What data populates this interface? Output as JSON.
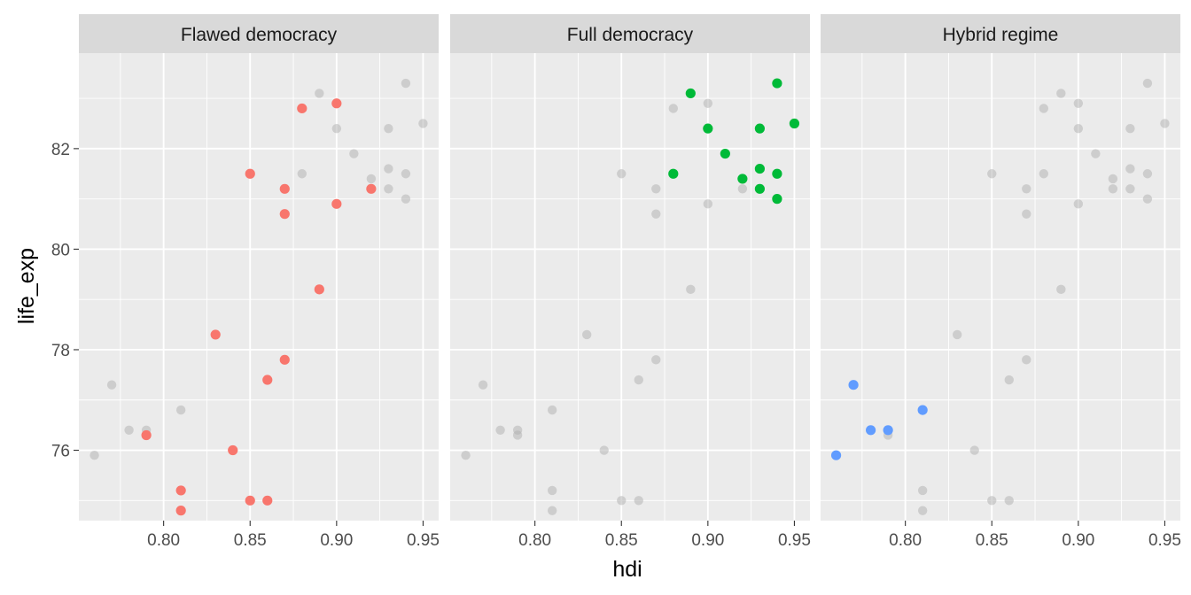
{
  "chart_data": {
    "type": "scatter",
    "xlabel": "hdi",
    "ylabel": "life_exp",
    "xlim": [
      0.751,
      0.959
    ],
    "ylim": [
      74.6,
      83.9
    ],
    "x_ticks": [
      0.8,
      0.85,
      0.9,
      0.95
    ],
    "x_tick_labels": [
      "0.80",
      "0.85",
      "0.90",
      "0.95"
    ],
    "y_ticks": [
      76,
      78,
      80,
      82
    ],
    "y_tick_labels": [
      "76",
      "78",
      "80",
      "82"
    ],
    "grid": true,
    "facets": [
      "Flawed democracy",
      "Full democracy",
      "Hybrid regime"
    ],
    "colors": {
      "Flawed democracy": "#F8766D",
      "Full democracy": "#00BA38",
      "Hybrid regime": "#619CFF",
      "background_points": "#b0b0b0",
      "panel_background": "#EBEBEB",
      "strip_background": "#D9D9D9"
    },
    "points": [
      {
        "x": 0.79,
        "y": 76.3,
        "group": "Flawed democracy"
      },
      {
        "x": 0.81,
        "y": 75.2,
        "group": "Flawed democracy"
      },
      {
        "x": 0.81,
        "y": 74.8,
        "group": "Flawed democracy"
      },
      {
        "x": 0.83,
        "y": 78.3,
        "group": "Flawed democracy"
      },
      {
        "x": 0.84,
        "y": 76.0,
        "group": "Flawed democracy"
      },
      {
        "x": 0.85,
        "y": 75.0,
        "group": "Flawed democracy"
      },
      {
        "x": 0.85,
        "y": 81.5,
        "group": "Flawed democracy"
      },
      {
        "x": 0.86,
        "y": 75.0,
        "group": "Flawed democracy"
      },
      {
        "x": 0.86,
        "y": 77.4,
        "group": "Flawed democracy"
      },
      {
        "x": 0.87,
        "y": 77.8,
        "group": "Flawed democracy"
      },
      {
        "x": 0.87,
        "y": 80.7,
        "group": "Flawed democracy"
      },
      {
        "x": 0.87,
        "y": 81.2,
        "group": "Flawed democracy"
      },
      {
        "x": 0.88,
        "y": 82.8,
        "group": "Flawed democracy"
      },
      {
        "x": 0.89,
        "y": 79.2,
        "group": "Flawed democracy"
      },
      {
        "x": 0.9,
        "y": 82.9,
        "group": "Flawed democracy"
      },
      {
        "x": 0.9,
        "y": 80.9,
        "group": "Flawed democracy"
      },
      {
        "x": 0.92,
        "y": 81.2,
        "group": "Flawed democracy"
      },
      {
        "x": 0.88,
        "y": 81.5,
        "group": "Full democracy"
      },
      {
        "x": 0.89,
        "y": 83.1,
        "group": "Full democracy"
      },
      {
        "x": 0.9,
        "y": 82.4,
        "group": "Full democracy"
      },
      {
        "x": 0.91,
        "y": 81.9,
        "group": "Full democracy"
      },
      {
        "x": 0.92,
        "y": 81.4,
        "group": "Full democracy"
      },
      {
        "x": 0.93,
        "y": 82.4,
        "group": "Full democracy"
      },
      {
        "x": 0.93,
        "y": 81.6,
        "group": "Full democracy"
      },
      {
        "x": 0.93,
        "y": 81.2,
        "group": "Full democracy"
      },
      {
        "x": 0.94,
        "y": 83.3,
        "group": "Full democracy"
      },
      {
        "x": 0.94,
        "y": 81.5,
        "group": "Full democracy"
      },
      {
        "x": 0.94,
        "y": 81.0,
        "group": "Full democracy"
      },
      {
        "x": 0.95,
        "y": 82.5,
        "group": "Full democracy"
      },
      {
        "x": 0.76,
        "y": 75.9,
        "group": "Hybrid regime"
      },
      {
        "x": 0.77,
        "y": 77.3,
        "group": "Hybrid regime"
      },
      {
        "x": 0.78,
        "y": 76.4,
        "group": "Hybrid regime"
      },
      {
        "x": 0.79,
        "y": 76.4,
        "group": "Hybrid regime"
      },
      {
        "x": 0.81,
        "y": 76.8,
        "group": "Hybrid regime"
      }
    ]
  }
}
